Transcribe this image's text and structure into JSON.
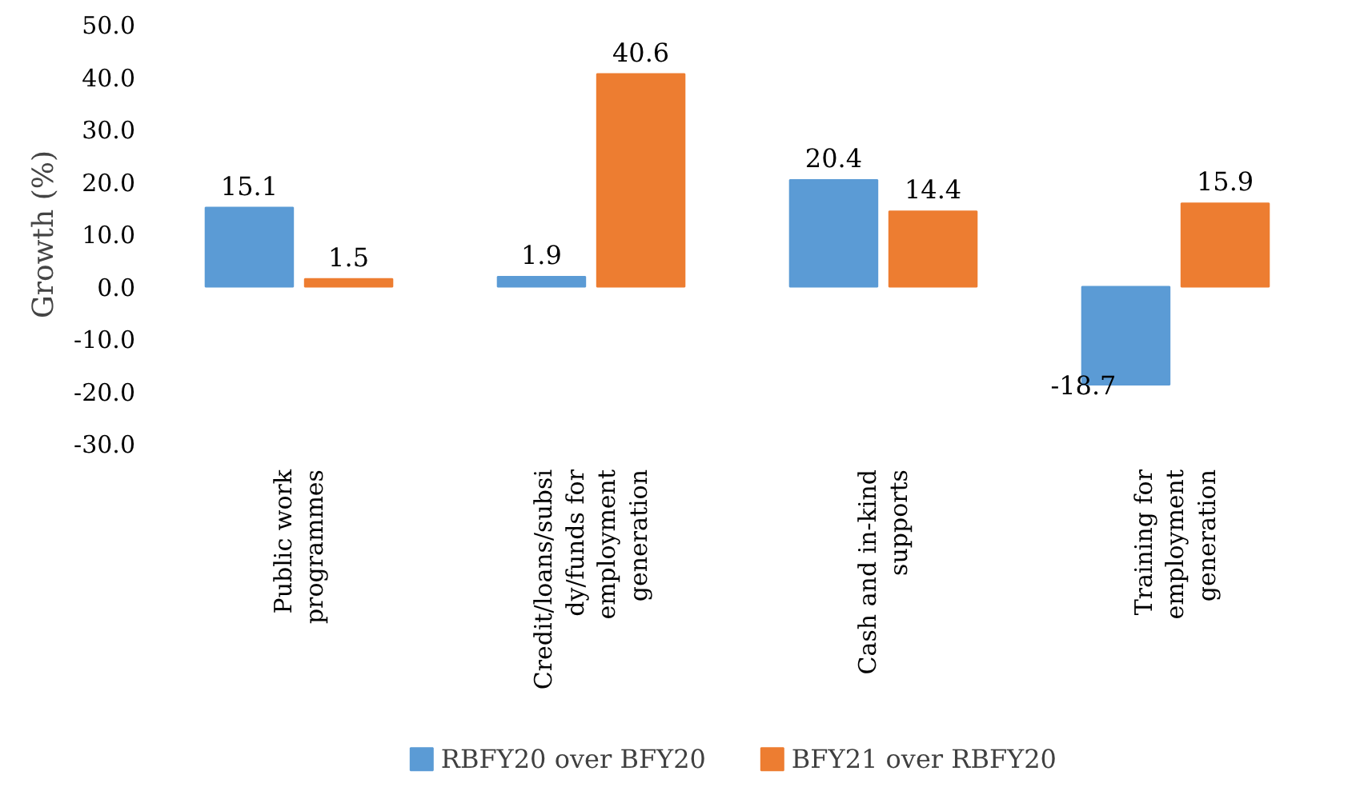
{
  "chart_data": {
    "type": "bar",
    "ylabel": "Growth (%)",
    "categories": [
      "Public work\nprogrammes",
      "Credit/loans/subsi\ndy/funds for\nemployment\ngeneration",
      "Cash and in-kind\nsupports",
      "Training for\nemployment\ngeneration"
    ],
    "series": [
      {
        "name": "RBFY20 over BFY20",
        "color": "#5b9bd5",
        "values": [
          15.1,
          1.9,
          20.4,
          -18.7
        ]
      },
      {
        "name": "BFY21 over RBFY20",
        "color": "#ed7d31",
        "values": [
          1.5,
          40.6,
          14.4,
          15.9
        ]
      }
    ],
    "ylim": [
      -30,
      50
    ],
    "yticks": [
      {
        "value": -30,
        "label": "-30.0"
      },
      {
        "value": -20,
        "label": "-20.0"
      },
      {
        "value": -10,
        "label": "-10.0"
      },
      {
        "value": 0,
        "label": "0.0"
      },
      {
        "value": 10,
        "label": "10.0"
      },
      {
        "value": 20,
        "label": "20.0"
      },
      {
        "value": 30,
        "label": "30.0"
      },
      {
        "value": 40,
        "label": "40.0"
      },
      {
        "value": 50,
        "label": "50.0"
      }
    ],
    "data_labels": true,
    "grid": false,
    "legend": "bottom"
  }
}
